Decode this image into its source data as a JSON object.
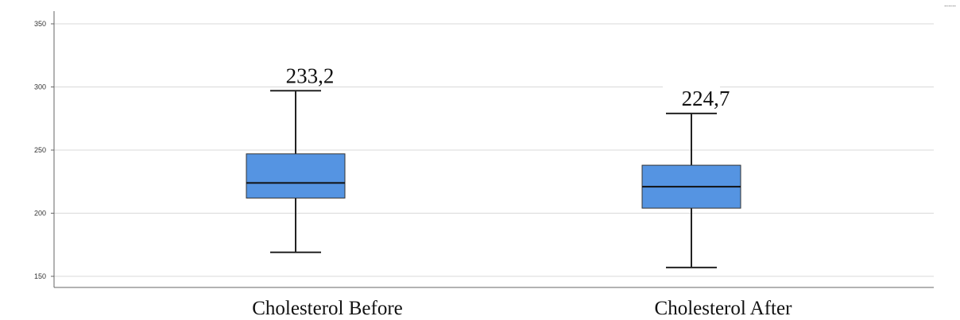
{
  "chart_data": {
    "type": "boxplot",
    "categories": [
      "Cholesterol Before",
      "Cholesterol After"
    ],
    "boxes": [
      {
        "category": "Cholesterol Before",
        "min": 169,
        "q1": 212,
        "median": 224,
        "q3": 247,
        "max": 297,
        "label": "233,2"
      },
      {
        "category": "Cholesterol After",
        "min": 157,
        "q1": 204,
        "median": 221,
        "q3": 238,
        "max": 279,
        "label": "224,7"
      }
    ],
    "y_ticks": [
      "150",
      "200",
      "250",
      "300",
      "350"
    ],
    "ylim": [
      145,
      362
    ],
    "grid": true,
    "box_color": "#5594e2",
    "box_stroke": "#222222",
    "grid_color": "#d9d9d9",
    "corner_mark": "......"
  }
}
